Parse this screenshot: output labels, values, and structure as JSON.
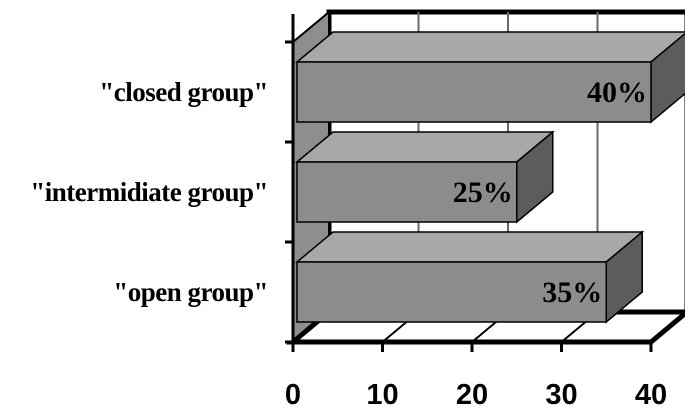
{
  "chart_data": {
    "type": "bar",
    "orientation": "horizontal",
    "three_d": true,
    "categories": [
      "\"closed group\"",
      "\"intermidiate group\"",
      "\"open group\""
    ],
    "values": [
      40,
      25,
      35
    ],
    "data_labels": [
      "40%",
      "25%",
      "35%"
    ],
    "title": "",
    "xlabel": "",
    "ylabel": "",
    "xlim": [
      0,
      40
    ],
    "xticks": [
      "0",
      "10",
      "20",
      "30",
      "40"
    ],
    "grid": true,
    "legend": "none",
    "colors": {
      "bar_front": "#8c8c8c",
      "bar_top": "#a8a8a8",
      "bar_side": "#5c5c5c",
      "back_wall": "#ffffff",
      "side_wall": "#8e8e8e",
      "outline": "#000000"
    }
  }
}
